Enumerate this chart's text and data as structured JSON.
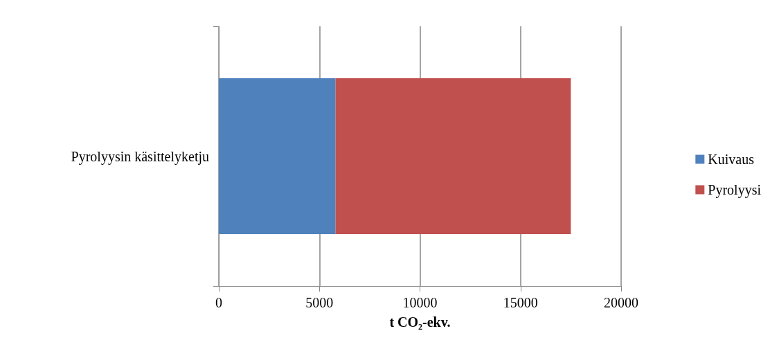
{
  "chart_data": {
    "type": "bar",
    "orientation": "horizontal",
    "stacked": true,
    "xlabel": "t CO₂-ekv.",
    "categories": [
      "Pyrolyysin käsittelyketju"
    ],
    "series": [
      {
        "name": "Kuivaus",
        "color": "#4f81bd",
        "values": [
          5800
        ]
      },
      {
        "name": "Pyrolyysi",
        "color": "#c0504d",
        "values": [
          11700
        ]
      }
    ],
    "xlim": [
      0,
      20000
    ],
    "xticks": [
      0,
      5000,
      10000,
      15000,
      20000
    ],
    "grid": "x",
    "legend": "right"
  }
}
